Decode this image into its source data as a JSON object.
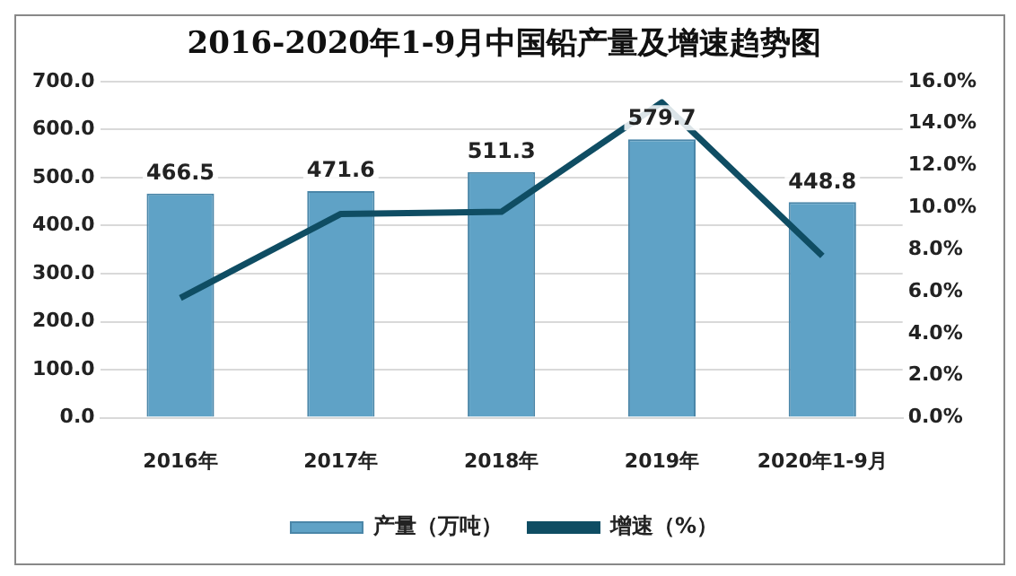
{
  "chart_data": {
    "type": "bar",
    "title": "2016-2020年1-9月中国铅产量及增速趋势图",
    "categories": [
      "2016年",
      "2017年",
      "2018年",
      "2019年",
      "2020年1-9月"
    ],
    "series": [
      {
        "name": "产量（万吨）",
        "color": "#5fa2c6",
        "values": [
          466.5,
          471.6,
          511.3,
          579.7,
          448.8
        ],
        "value_labels": [
          "466.5",
          "471.6",
          "511.3",
          "579.7",
          "448.8"
        ]
      },
      {
        "name": "增速（%）",
        "type": "line",
        "axis": "y2",
        "color": "#0f4d63",
        "values": [
          5.7,
          9.7,
          9.8,
          15.0,
          7.7
        ]
      }
    ],
    "ylim": [
      0,
      700
    ],
    "yticks": [
      {
        "value": 0,
        "label": "0.0"
      },
      {
        "value": 100,
        "label": "100.0"
      },
      {
        "value": 200,
        "label": "200.0"
      },
      {
        "value": 300,
        "label": "300.0"
      },
      {
        "value": 400,
        "label": "400.0"
      },
      {
        "value": 500,
        "label": "500.0"
      },
      {
        "value": 600,
        "label": "600.0"
      },
      {
        "value": 700,
        "label": "700.0"
      }
    ],
    "y2lim": [
      0,
      16
    ],
    "y2ticks": [
      {
        "value": 0,
        "label": "0.0%"
      },
      {
        "value": 2,
        "label": "2.0%"
      },
      {
        "value": 4,
        "label": "4.0%"
      },
      {
        "value": 6,
        "label": "6.0%"
      },
      {
        "value": 8,
        "label": "8.0%"
      },
      {
        "value": 10,
        "label": "10.0%"
      },
      {
        "value": 12,
        "label": "12.0%"
      },
      {
        "value": 14,
        "label": "14.0%"
      },
      {
        "value": 16,
        "label": "16.0%"
      }
    ],
    "grid": "y",
    "legend": "bottom",
    "marker": "none"
  }
}
